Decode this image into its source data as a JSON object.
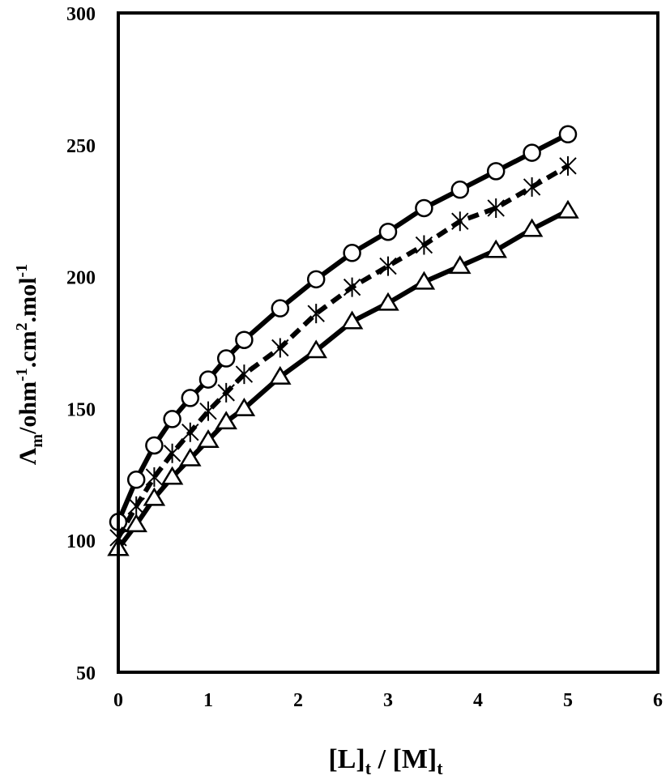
{
  "chart_data": {
    "type": "line",
    "title": "",
    "xlabel": {
      "main": "[L]",
      "sub1": "t",
      "sep": " / ",
      "main2": "[M]",
      "sub2": "t"
    },
    "ylabel": {
      "lambda": "Λ",
      "lambda_sub": "m",
      "unit_a": "/ohm",
      "sup_a": "-1",
      "unit_b": ".cm",
      "sup_b": "2",
      "unit_c": ".mol",
      "sup_c": "-1"
    },
    "xlim": [
      0,
      6
    ],
    "ylim": [
      50,
      300
    ],
    "xticks": [
      "0",
      "1",
      "2",
      "3",
      "4",
      "5",
      "6"
    ],
    "yticks": [
      "50",
      "100",
      "150",
      "200",
      "250",
      "300"
    ],
    "grid": false,
    "legend": "none",
    "series": [
      {
        "marker": "circle",
        "line": "solid",
        "x": [
          0,
          0.2,
          0.4,
          0.6,
          0.8,
          1.0,
          1.2,
          1.4,
          1.8,
          2.2,
          2.6,
          3.0,
          3.4,
          3.8,
          4.2,
          4.6,
          5.0
        ],
        "y": [
          107,
          123,
          136,
          146,
          154,
          161,
          169,
          176,
          188,
          199,
          209,
          217,
          226,
          233,
          240,
          247,
          254
        ]
      },
      {
        "marker": "asterisk",
        "line": "dashed",
        "x": [
          0,
          0.2,
          0.4,
          0.6,
          0.8,
          1.0,
          1.2,
          1.4,
          1.8,
          2.2,
          2.6,
          3.0,
          3.4,
          3.8,
          4.2,
          4.6,
          5.0
        ],
        "y": [
          101,
          113,
          124,
          133,
          141,
          149,
          156,
          163,
          173,
          186,
          196,
          204,
          212,
          221,
          226,
          234,
          242
        ]
      },
      {
        "marker": "triangle",
        "line": "solid",
        "x": [
          0,
          0.2,
          0.4,
          0.6,
          0.8,
          1.0,
          1.2,
          1.4,
          1.8,
          2.2,
          2.6,
          3.0,
          3.4,
          3.8,
          4.2,
          4.6,
          5.0
        ],
        "y": [
          97,
          106,
          116,
          124,
          131,
          138,
          145,
          150,
          162,
          172,
          183,
          190,
          198,
          204,
          210,
          218,
          225
        ]
      }
    ]
  }
}
